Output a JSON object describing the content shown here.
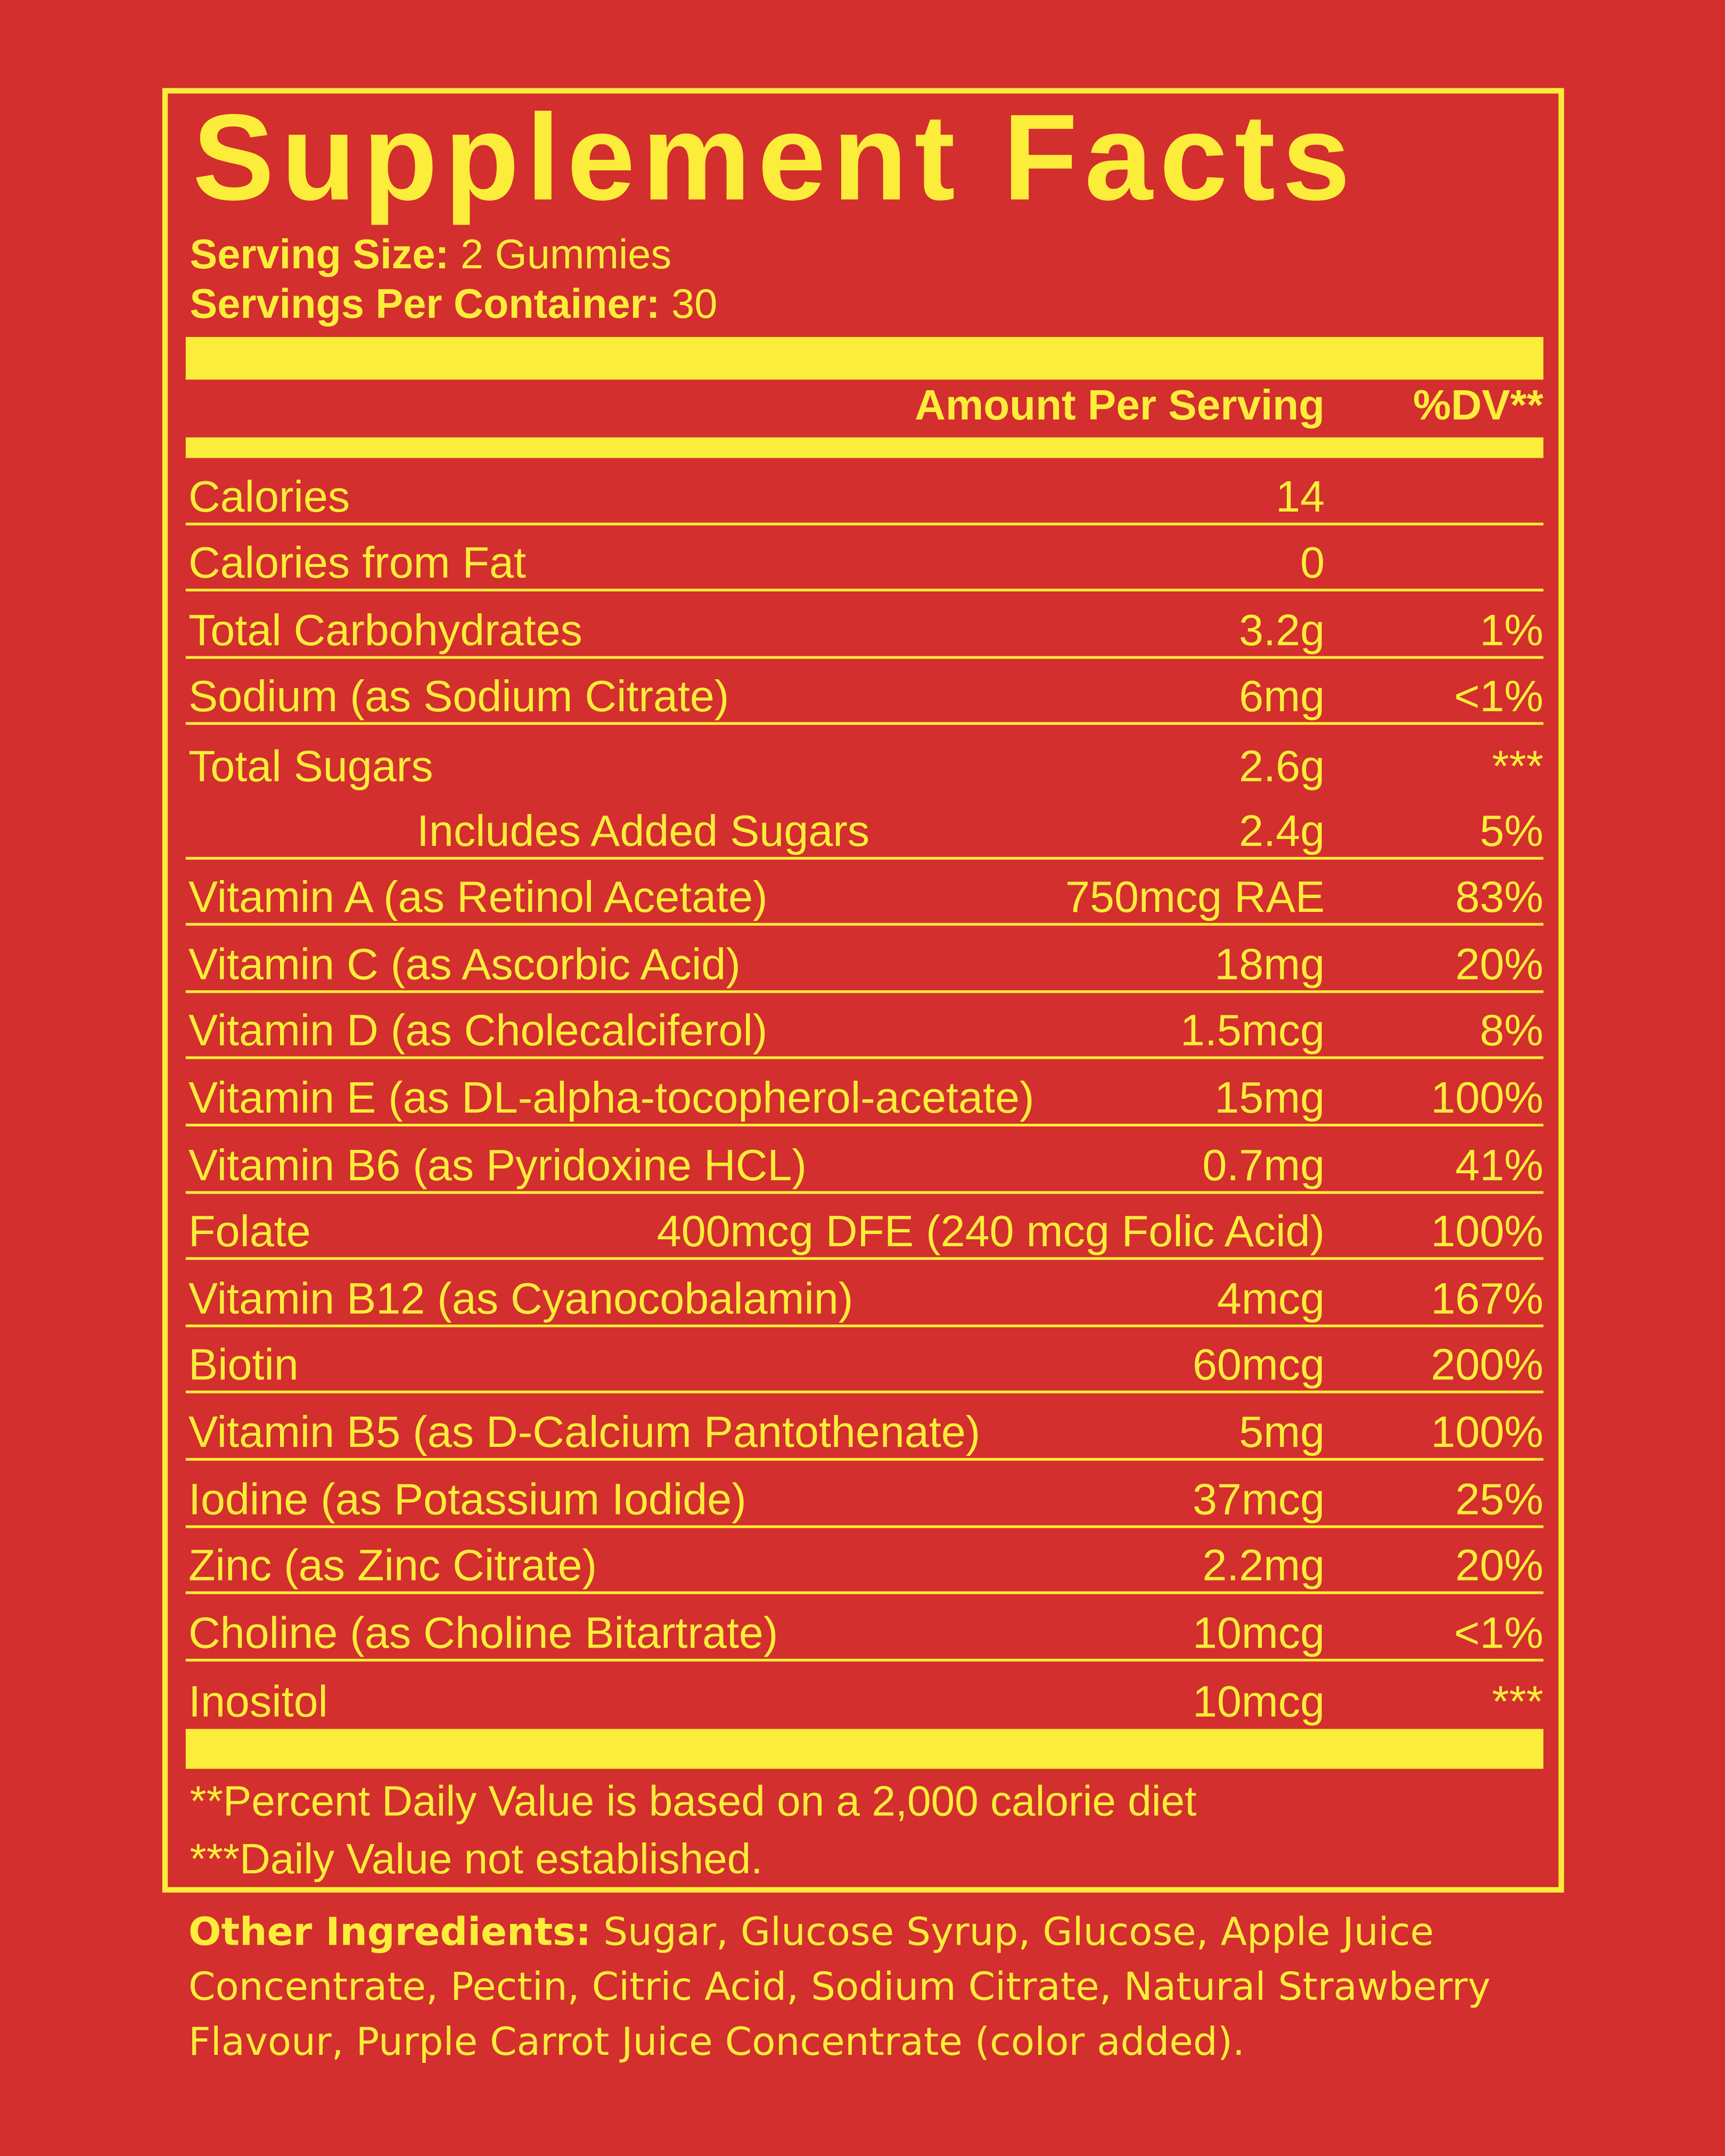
{
  "title": "Supplement Facts",
  "serving_size": {
    "label": "Serving Size:",
    "value": "2 Gummies"
  },
  "servings_per_container": {
    "label": "Servings Per Container:",
    "value": "30"
  },
  "header": {
    "amount": "Amount Per Serving",
    "dv": "%DV**"
  },
  "rows": [
    {
      "name": "Calories",
      "amount": "14"
    },
    {
      "name": "Calories from Fat",
      "amount": "0"
    },
    {
      "name": "Total Carbohydrates",
      "amount": "3.2g",
      "dv": "1%"
    },
    {
      "name": "Sodium (as Sodium Citrate)",
      "amount": "6mg",
      "dv": "<1%"
    },
    {
      "name": "Total Sugars",
      "amount": "2.6g",
      "dv": "***"
    },
    {
      "name": "Includes Added Sugars",
      "amount": "2.4g",
      "dv": "5%"
    },
    {
      "name": "Vitamin A (as Retinol Acetate)",
      "amount": "750mcg RAE",
      "dv": "83%"
    },
    {
      "name": "Vitamin C (as Ascorbic Acid)",
      "amount": "18mg",
      "dv": "20%"
    },
    {
      "name": "Vitamin D (as Cholecalciferol)",
      "amount": "1.5mcg",
      "dv": "8%"
    },
    {
      "name": "Vitamin E (as DL-alpha-tocopherol-acetate)",
      "amount": "15mg",
      "dv": "100%"
    },
    {
      "name": "Vitamin B6 (as Pyridoxine HCL)",
      "amount": "0.7mg",
      "dv": "41%"
    },
    {
      "name": "Folate",
      "amount": "400mcg DFE (240 mcg Folic Acid)",
      "dv": "100%"
    },
    {
      "name": "Vitamin B12 (as Cyanocobalamin)",
      "amount": "4mcg",
      "dv": "167%"
    },
    {
      "name": "Biotin",
      "amount": "60mcg",
      "dv": "200%"
    },
    {
      "name": "Vitamin B5 (as D-Calcium Pantothenate)",
      "amount": "5mg",
      "dv": "100%"
    },
    {
      "name": "Iodine (as Potassium Iodide)",
      "amount": "37mcg",
      "dv": "25%"
    },
    {
      "name": "Zinc (as Zinc Citrate)",
      "amount": "2.2mg",
      "dv": "20%"
    },
    {
      "name": "Choline (as Choline Bitartrate)",
      "amount": "10mcg",
      "dv": "<1%"
    },
    {
      "name": "Inositol",
      "amount": "10mcg",
      "dv": "***"
    }
  ],
  "footnotes": [
    "**Percent Daily Value is based on a 2,000 calorie diet",
    "***Daily Value not established."
  ],
  "other_ingredients": {
    "label": "Other Ingredients:",
    "text": "Sugar, Glucose Syrup, Glucose, Apple Juice Concentrate, Pectin, Citric Acid, Sodium Citrate, Natural Strawberry Flavour, Purple Carrot Juice Concentrate (color added)."
  }
}
